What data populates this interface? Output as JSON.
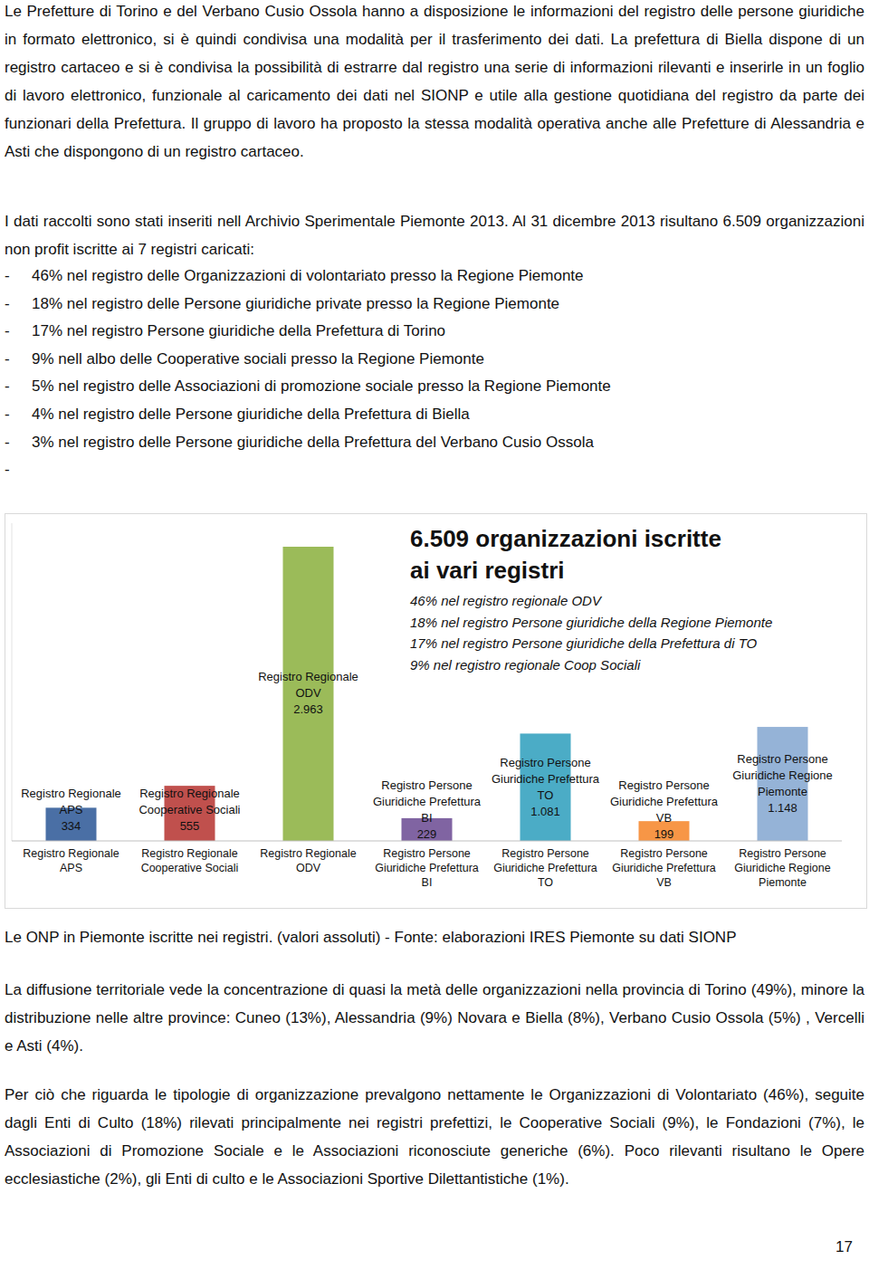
{
  "document": {
    "paragraphs_top": [
      "Le Prefetture di Torino e del Verbano Cusio Ossola hanno a disposizione le informazioni del registro delle persone giuridiche in formato elettronico, si è quindi condivisa una modalità per il trasferimento dei dati. La prefettura di Biella dispone di un registro cartaceo e si è condivisa la possibilità di estrarre dal registro una serie di informazioni rilevanti e inserirle in un foglio di lavoro elettronico, funzionale al caricamento dei dati nel SIONP e utile alla gestione quotidiana del registro da parte dei funzionari della Prefettura. Il gruppo di lavoro ha proposto la stessa modalità operativa anche alle Prefetture di Alessandria e Asti che dispongono di un registro cartaceo.",
      "I dati raccolti sono stati inseriti nell Archivio Sperimentale Piemonte 2013. Al 31 dicembre 2013 risultano 6.509 organizzazioni non profit iscritte ai 7 registri caricati:"
    ],
    "list": [
      {
        "marker": "-",
        "text": "46% nel registro delle Organizzazioni di volontariato presso la Regione Piemonte"
      },
      {
        "marker": "-",
        "text": "18% nel registro delle Persone giuridiche private presso la Regione Piemonte"
      },
      {
        "marker": "-",
        "text": "17% nel registro Persone giuridiche della Prefettura di Torino"
      },
      {
        "marker": "-",
        "text": "9% nell albo delle Cooperative sociali presso la Regione Piemonte"
      },
      {
        "marker": "-",
        "text": "5% nel registro delle Associazioni di promozione sociale presso la Regione Piemonte"
      },
      {
        "marker": "-",
        "text": "4% nel registro delle Persone giuridiche della Prefettura di Biella"
      },
      {
        "marker": "-",
        "text": "3% nel registro delle Persone giuridiche della Prefettura del Verbano Cusio Ossola"
      },
      {
        "marker": "-"
      }
    ],
    "caption": "Le ONP in Piemonte iscritte nei registri. (valori assoluti) - Fonte: elaborazioni IRES Piemonte su dati SIONP",
    "paragraphs_bottom": [
      "La diffusione territoriale vede la concentrazione di quasi la metà delle organizzazioni nella provincia di Torino (49%), minore la distribuzione nelle altre province: Cuneo (13%), Alessandria (9%) Novara e Biella (8%), Verbano Cusio Ossola (5%) , Vercelli e Asti (4%).",
      "Per ciò che riguarda le tipologie di organizzazione prevalgono nettamente le Organizzazioni di Volontariato (46%), seguite dagli Enti di Culto (18%) rilevati principalmente nei registri prefettizi, le Cooperative Sociali (9%), le Fondazioni (7%), le Associazioni di Promozione Sociale e le Associazioni riconosciute generiche (6%). Poco rilevanti risultano le Opere ecclesiastiche (2%), gli Enti di culto e le Associazioni Sportive Dilettantistiche (1%)."
    ],
    "page_number": "17"
  },
  "chart_data": {
    "type": "bar",
    "categories": [
      "Registro Regionale APS",
      "Registro Regionale Cooperative Sociali",
      "Registro Regionale ODV",
      "Registro Persone Giuridiche Prefettura BI",
      "Registro Persone Giuridiche Prefettura TO",
      "Registro Persone Giuridiche Prefettura VB",
      "Registro Persone Giuridiche Regione Piemonte"
    ],
    "values": [
      334,
      555,
      2963,
      229,
      1081,
      199,
      1148
    ],
    "value_labels": [
      "334",
      "555",
      "2.963",
      "229",
      "1.081",
      "199",
      "1.148"
    ],
    "colors": [
      "#4a6fa5",
      "#c0504d",
      "#9bbb59",
      "#8064a2",
      "#4bacc6",
      "#f79646",
      "#95b3d7"
    ],
    "ylim": [
      0,
      3200
    ],
    "yticks": [],
    "tick_labels": "x",
    "data_labels": true,
    "annotation": {
      "title": "6.509 organizzazioni iscritte ai vari registri",
      "lines": [
        "46% nel registro regionale ODV",
        "18% nel registro Persone giuridiche della Regione Piemonte",
        "17% nel registro Persone giuridiche della Prefettura di TO",
        "9% nel registro regionale Coop Sociali"
      ]
    }
  }
}
